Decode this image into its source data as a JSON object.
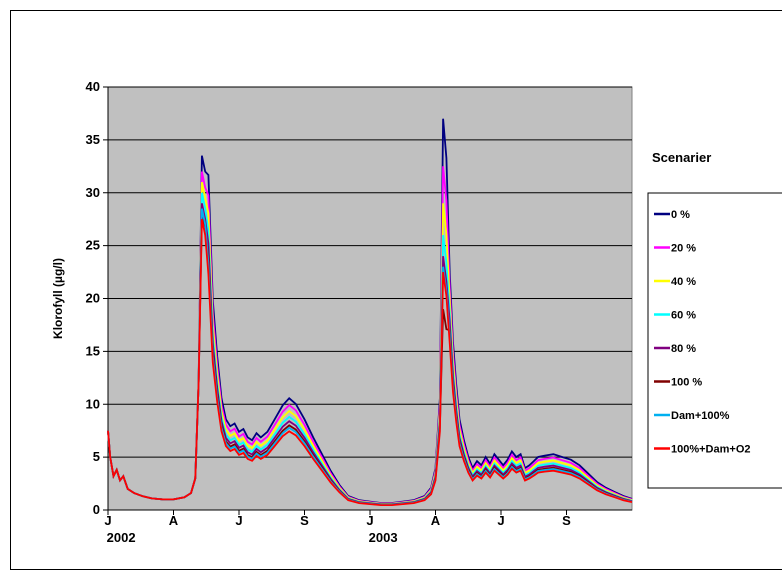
{
  "chart_data": {
    "type": "line",
    "ylabel": "Klorofyll (µg/l)",
    "ylim": [
      0,
      40
    ],
    "yticks": [
      0,
      5,
      10,
      15,
      20,
      25,
      30,
      35,
      40
    ],
    "xlim": [
      0,
      24
    ],
    "xtick_labels": [
      {
        "x": 0,
        "label": "J"
      },
      {
        "x": 3,
        "label": "A"
      },
      {
        "x": 6,
        "label": "J"
      },
      {
        "x": 9,
        "label": "S"
      },
      {
        "x": 12,
        "label": "J"
      },
      {
        "x": 15,
        "label": "A"
      },
      {
        "x": 18,
        "label": "J"
      },
      {
        "x": 21,
        "label": "S"
      }
    ],
    "year_labels": [
      {
        "x": 0.6,
        "label": "2002"
      },
      {
        "x": 12.6,
        "label": "2003"
      }
    ],
    "grid": true,
    "plot_background": "#c0c0c0",
    "legend": {
      "title": "Scenarier",
      "placement": "right"
    },
    "base_x": [
      0,
      0.1,
      0.25,
      0.4,
      0.55,
      0.7,
      0.9,
      1.2,
      1.6,
      2.0,
      2.5,
      3.0,
      3.5,
      3.8,
      4.0,
      4.15,
      4.3,
      4.45,
      4.6,
      4.8,
      5.0,
      5.2,
      5.4,
      5.6,
      5.8,
      6.0,
      6.2,
      6.4,
      6.6,
      6.8,
      7.0,
      7.3,
      7.6,
      8.0,
      8.3,
      8.6,
      9.0,
      9.4,
      9.8,
      10.2,
      10.6,
      11.0,
      11.5,
      12.0,
      12.5,
      13.0,
      13.5,
      14.0,
      14.5,
      14.8,
      15.0,
      15.2,
      15.35,
      15.5,
      15.65,
      15.8,
      15.95,
      16.1,
      16.3,
      16.5,
      16.7,
      16.9,
      17.1,
      17.3,
      17.5,
      17.7,
      17.9,
      18.1,
      18.3,
      18.5,
      18.7,
      18.9,
      19.1,
      19.3,
      19.5,
      19.7,
      20.0,
      20.4,
      20.8,
      21.2,
      21.6,
      22.0,
      22.4,
      22.8,
      23.2,
      23.6,
      24.0
    ],
    "base_y": [
      7.5,
      5.0,
      3.2,
      3.8,
      2.8,
      3.2,
      2.0,
      1.6,
      1.3,
      1.1,
      1.0,
      1.0,
      1.2,
      1.6,
      3.0,
      12.0,
      27.0,
      26.0,
      24.0,
      15.0,
      11.0,
      8.0,
      6.5,
      6.0,
      6.2,
      5.6,
      5.8,
      5.2,
      5.0,
      5.5,
      5.2,
      5.6,
      6.4,
      7.5,
      8.0,
      7.6,
      6.5,
      5.2,
      4.0,
      2.8,
      1.8,
      1.0,
      0.7,
      0.6,
      0.5,
      0.5,
      0.6,
      0.7,
      1.0,
      1.6,
      3.0,
      8.0,
      22.5,
      20.0,
      17.0,
      12.0,
      9.0,
      6.5,
      5.0,
      3.8,
      3.0,
      3.5,
      3.2,
      3.8,
      3.3,
      4.0,
      3.6,
      3.2,
      3.6,
      4.2,
      3.8,
      4.0,
      3.0,
      3.2,
      3.5,
      3.8,
      3.9,
      4.0,
      3.8,
      3.6,
      3.2,
      2.6,
      2.0,
      1.6,
      1.3,
      1.0,
      0.8
    ],
    "series": [
      {
        "name": "0 %",
        "color": "#000080",
        "y2002_peak": 33.5,
        "y2003_peak": 37.0,
        "scale": 1.32
      },
      {
        "name": "20 %",
        "color": "#ff00ff",
        "y2002_peak": 32.0,
        "y2003_peak": 32.5,
        "scale": 1.24
      },
      {
        "name": "40 %",
        "color": "#ffff00",
        "y2002_peak": 31.0,
        "y2003_peak": 29.0,
        "scale": 1.17
      },
      {
        "name": "60 %",
        "color": "#00ffff",
        "y2002_peak": 30.0,
        "y2003_peak": 26.0,
        "scale": 1.1
      },
      {
        "name": "80 %",
        "color": "#800080",
        "y2002_peak": 29.0,
        "y2003_peak": 24.0,
        "scale": 1.05
      },
      {
        "name": "100 %",
        "color": "#800000",
        "y2002_peak": 28.0,
        "y2003_peak": 19.0,
        "scale": 1.0
      },
      {
        "name": "Dam+100%",
        "color": "#00b0f0",
        "y2002_peak": 28.5,
        "y2003_peak": 23.0,
        "scale": 0.97
      },
      {
        "name": "100%+Dam+O2",
        "color": "#ff0000",
        "y2002_peak": 27.5,
        "y2003_peak": 22.5,
        "scale": 0.93
      }
    ]
  }
}
